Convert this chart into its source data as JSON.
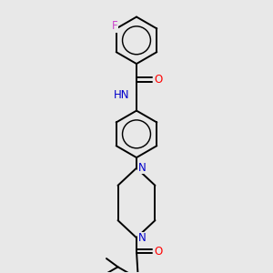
{
  "background_color": "#e8e8e8",
  "atom_colors": {
    "C": "#000000",
    "N": "#0000cc",
    "O": "#ff0000",
    "F": "#cc44cc",
    "H": "#000000"
  },
  "bond_color": "#000000",
  "bond_width": 1.4,
  "figsize": [
    3.0,
    3.0
  ],
  "dpi": 100,
  "scale": 1.0
}
